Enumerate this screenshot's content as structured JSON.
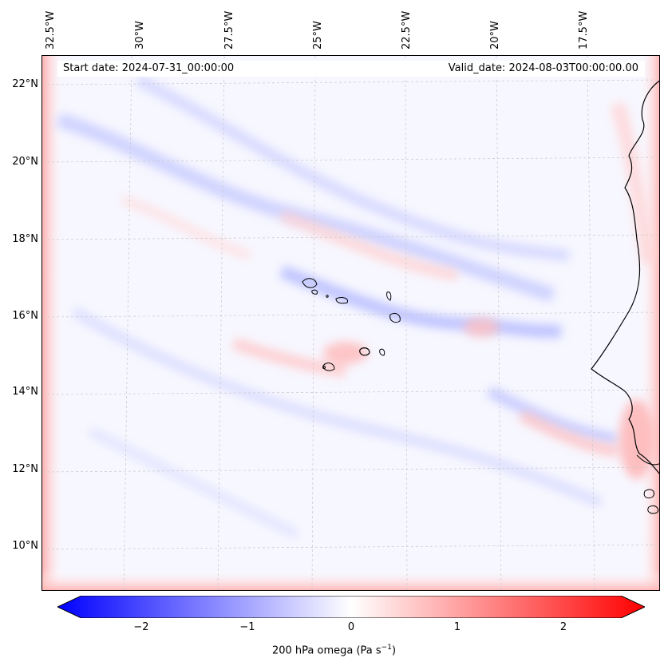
{
  "map": {
    "start_date": "Start date: 2024-07-31_00:00:00",
    "valid_date": "Valid_date: 2024-08-03T00:00:00.00",
    "lon_labels": [
      "32.5°W",
      "30°W",
      "27.5°W",
      "25°W",
      "22.5°W",
      "20°W",
      "17.5°W"
    ],
    "lat_labels": [
      "22°N",
      "20°N",
      "18°N",
      "16°N",
      "14°N",
      "12°N",
      "10°N"
    ],
    "colormap": {
      "low": "#0000ff",
      "mid": "#ffffff",
      "high": "#ff0000"
    }
  },
  "colorbar": {
    "ticks": [
      "−2",
      "−1",
      "0",
      "1",
      "2"
    ],
    "label": "200 hPa omega (Pa s",
    "label_exponent": "−1",
    "label_close": ")"
  }
}
